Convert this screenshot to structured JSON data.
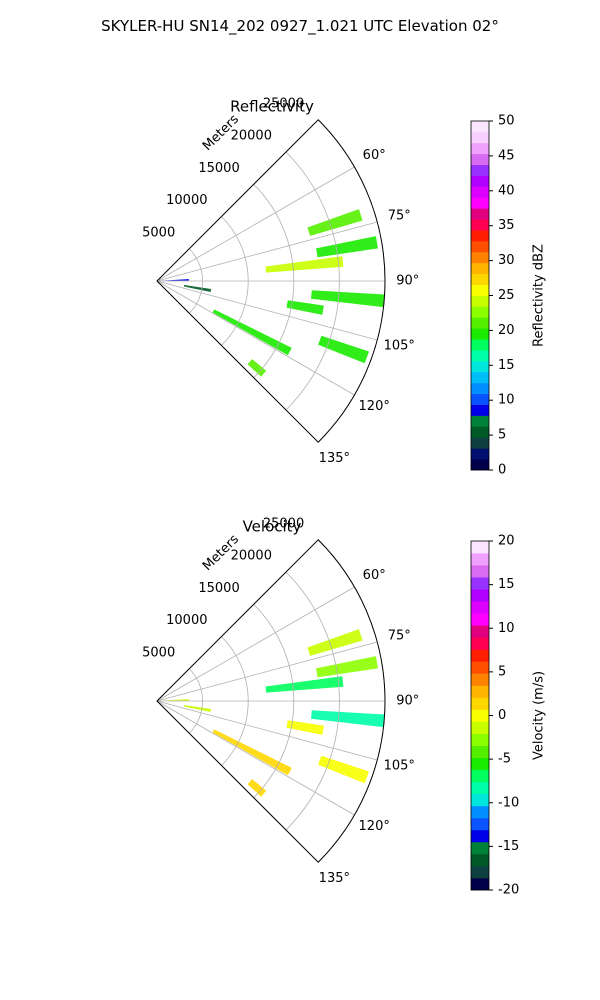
{
  "figure_title": "SKYLER-HU  SN14_202  0927_1.021 UTC Elevation 02°",
  "chart_data": [
    {
      "type": "heatmap",
      "title": "Reflectivity",
      "radial_axis_label": "Meters",
      "range_rings": [
        5000,
        10000,
        15000,
        20000,
        25000
      ],
      "azimuth_ticks": [
        60,
        75,
        90,
        105,
        120,
        135
      ],
      "azimuth_range": [
        45,
        135
      ],
      "max_range": 25000,
      "grid": true,
      "colorbar": {
        "label": "Reflectivity dBZ",
        "range": [
          0,
          50
        ],
        "ticks": [
          0,
          5,
          10,
          15,
          20,
          25,
          30,
          35,
          40,
          45,
          50
        ],
        "colors": [
          "#00004a",
          "#000f70",
          "#0f3f3f",
          "#005a28",
          "#00813a",
          "#0000e6",
          "#0a54ff",
          "#0090ff",
          "#00bdf7",
          "#00e6dd",
          "#00ffa8",
          "#00ff5e",
          "#1aeb00",
          "#55ef00",
          "#8cff00",
          "#c8ff00",
          "#f7ff00",
          "#ffd700",
          "#ffb400",
          "#ff8200",
          "#ff5000",
          "#ff1e00",
          "#ff0052",
          "#e1007d",
          "#ff00ff",
          "#dd00ff",
          "#b100ff",
          "#9833ff",
          "#d96bf2",
          "#f0a0ff",
          "#f6d0ff",
          "#fbe6ff"
        ]
      },
      "echoes": [
        {
          "az": 72,
          "r0": 17500,
          "r1": 23500,
          "value": 21
        },
        {
          "az": 84,
          "r0": 12000,
          "r1": 20500,
          "value": 24
        },
        {
          "az": 95,
          "r0": 17000,
          "r1": 25000,
          "value": 20
        },
        {
          "az": 80,
          "r0": 17800,
          "r1": 24500,
          "value": 19
        },
        {
          "az": 110,
          "r0": 19000,
          "r1": 24500,
          "value": 20
        },
        {
          "az": 100,
          "r0": 14500,
          "r1": 18500,
          "value": 19
        },
        {
          "az": 118,
          "r0": 7000,
          "r1": 16500,
          "value": 19
        },
        {
          "az": 100,
          "r0": 3000,
          "r1": 6000,
          "value": 5
        },
        {
          "az": 88,
          "r0": 500,
          "r1": 3500,
          "value": 9
        },
        {
          "az": 131,
          "r0": 13500,
          "r1": 15500,
          "value": 21
        }
      ]
    },
    {
      "type": "heatmap",
      "title": "Velocity",
      "radial_axis_label": "Meters",
      "range_rings": [
        5000,
        10000,
        15000,
        20000,
        25000
      ],
      "azimuth_ticks": [
        60,
        75,
        90,
        105,
        120,
        135
      ],
      "azimuth_range": [
        45,
        135
      ],
      "max_range": 25000,
      "grid": true,
      "colorbar": {
        "label": "Velocity (m/s)",
        "range": [
          -20,
          20
        ],
        "ticks": [
          -20,
          -15,
          -10,
          -5,
          0,
          5,
          10,
          15,
          20
        ],
        "colors": [
          "#00004a",
          "#0f3f3f",
          "#005a28",
          "#00813a",
          "#0000e6",
          "#0a54ff",
          "#0090ff",
          "#00e6dd",
          "#00ffa8",
          "#00ff5e",
          "#1aeb00",
          "#55ef00",
          "#8cff00",
          "#c8ff00",
          "#f7ff00",
          "#ffd700",
          "#ffb400",
          "#ff8200",
          "#ff5000",
          "#ff1e00",
          "#ff0052",
          "#e1007d",
          "#ff00ff",
          "#dd00ff",
          "#b100ff",
          "#9833ff",
          "#d96bf2",
          "#f0a0ff",
          "#fbe6ff"
        ]
      },
      "echoes": [
        {
          "az": 72,
          "r0": 17500,
          "r1": 23500,
          "value": -2
        },
        {
          "az": 84,
          "r0": 12000,
          "r1": 20500,
          "value": -7
        },
        {
          "az": 95,
          "r0": 17000,
          "r1": 25000,
          "value": -8
        },
        {
          "az": 80,
          "r0": 17800,
          "r1": 24500,
          "value": -3
        },
        {
          "az": 110,
          "r0": 19000,
          "r1": 24500,
          "value": 0
        },
        {
          "az": 100,
          "r0": 14500,
          "r1": 18500,
          "value": 0
        },
        {
          "az": 118,
          "r0": 7000,
          "r1": 16500,
          "value": 1
        },
        {
          "az": 100,
          "r0": 3000,
          "r1": 6000,
          "value": -2
        },
        {
          "az": 88,
          "r0": 500,
          "r1": 3500,
          "value": -1
        },
        {
          "az": 131,
          "r0": 13500,
          "r1": 15500,
          "value": 2
        }
      ]
    }
  ]
}
